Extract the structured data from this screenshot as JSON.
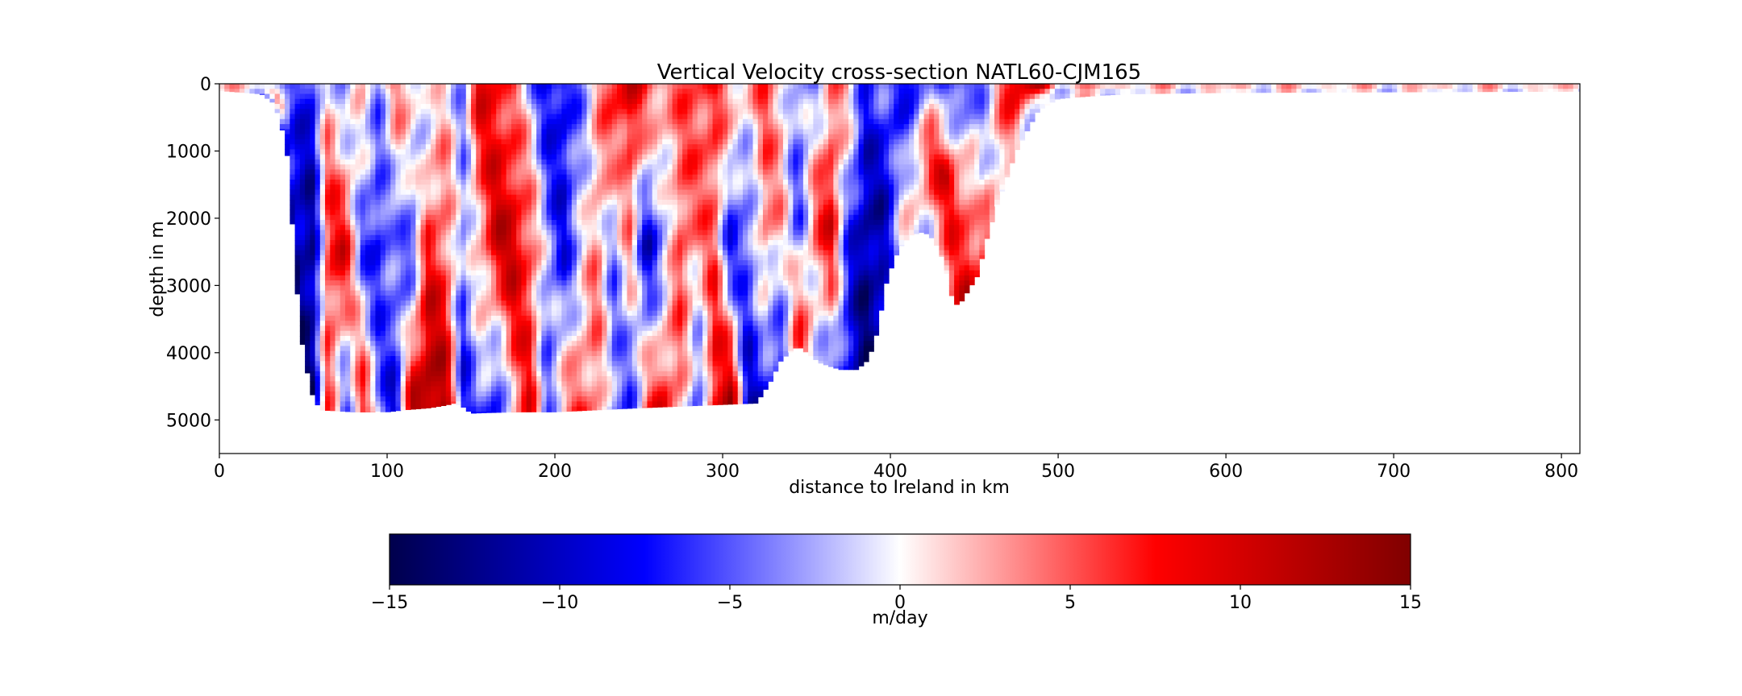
{
  "chart_data": {
    "type": "heatmap",
    "title": "Vertical Velocity cross-section NATL60-CJM165",
    "xlabel": "distance to Ireland in km",
    "ylabel": "depth in m",
    "xlim": [
      0,
      811
    ],
    "ylim": [
      5500,
      0
    ],
    "x_ticks": [
      0,
      100,
      200,
      300,
      400,
      500,
      600,
      700,
      800
    ],
    "y_ticks": [
      0,
      1000,
      2000,
      3000,
      4000,
      5000
    ],
    "colormap": "seismic",
    "colormap_stops": [
      "#00004c",
      "#0000ff",
      "#ffffff",
      "#ff0000",
      "#800000"
    ],
    "grid": false,
    "colorbar": {
      "label": "m/day",
      "range": [
        -15,
        15
      ],
      "ticks": [
        "−15",
        "−10",
        "−5",
        "0",
        "5",
        "10",
        "15"
      ],
      "tick_values": [
        -15,
        -10,
        -5,
        0,
        5,
        10,
        15
      ],
      "orientation": "horizontal",
      "placement": "bottom"
    },
    "bathymetry": {
      "x": [
        0,
        25,
        33,
        40,
        43,
        46,
        50,
        55,
        60,
        80,
        100,
        110,
        125,
        135,
        140,
        145,
        150,
        160,
        180,
        200,
        250,
        300,
        320,
        328,
        335,
        345,
        358,
        370,
        380,
        387,
        392,
        398,
        405,
        412,
        420,
        426,
        432,
        436,
        438,
        442,
        447,
        452,
        458,
        465,
        475,
        488,
        500,
        520,
        540,
        600,
        700,
        811
      ],
      "depth": [
        100,
        150,
        300,
        900,
        1900,
        3000,
        4000,
        4600,
        4850,
        4880,
        4880,
        4850,
        4820,
        4780,
        4750,
        4800,
        4900,
        4890,
        4880,
        4880,
        4820,
        4770,
        4750,
        4450,
        4100,
        3900,
        4150,
        4250,
        4250,
        4100,
        3700,
        2900,
        2450,
        2250,
        2200,
        2320,
        2650,
        3100,
        3300,
        3250,
        3050,
        2850,
        2250,
        1700,
        1000,
        400,
        220,
        180,
        150,
        130,
        120,
        110
      ]
    },
    "velocity_bands": {
      "x": [
        0,
        10,
        20,
        35,
        45,
        55,
        65,
        75,
        85,
        95,
        105,
        115,
        125,
        135,
        145,
        155,
        165,
        175,
        185,
        195,
        205,
        215,
        225,
        235,
        245,
        255,
        265,
        275,
        285,
        295,
        305,
        315,
        325,
        335,
        345,
        355,
        365,
        375,
        385,
        395,
        405,
        415,
        425,
        435,
        445,
        455,
        465,
        475,
        490,
        500
      ],
      "shallow_m_per_day": [
        5,
        3,
        2,
        -2,
        -5,
        -8,
        2,
        -4,
        1,
        -3,
        4,
        2,
        -2,
        1,
        -3,
        9,
        8,
        4,
        -2,
        -8,
        -9,
        -4,
        2,
        8,
        10,
        6,
        5,
        4,
        6,
        7,
        3,
        2,
        5,
        2,
        -3,
        -4,
        4,
        2,
        -6,
        -5,
        -7,
        -8,
        -2,
        -6,
        -8,
        -3,
        4,
        9,
        12,
        3
      ],
      "mid_m_per_day": [
        0,
        0,
        0,
        2,
        -9,
        -12,
        7,
        9,
        -5,
        -8,
        -3,
        -6,
        7,
        5,
        -4,
        2,
        10,
        11,
        6,
        -3,
        -8,
        -2,
        4,
        -4,
        3,
        -10,
        -4,
        6,
        3,
        5,
        -8,
        -6,
        4,
        2,
        -6,
        5,
        9,
        -6,
        -12,
        -10,
        -5,
        2,
        7,
        10,
        4,
        -2,
        3,
        5,
        0,
        0
      ],
      "deep_m_per_day": [
        0,
        0,
        0,
        -6,
        -14,
        -13,
        5,
        -6,
        8,
        -3,
        -10,
        11,
        14,
        12,
        -8,
        -4,
        -9,
        2,
        8,
        -5,
        3,
        6,
        4,
        -4,
        -6,
        5,
        8,
        3,
        -7,
        9,
        12,
        -10,
        -8,
        -6,
        8,
        -2,
        -3,
        -9,
        -13,
        -11,
        0,
        0,
        0,
        2,
        11,
        6,
        0,
        0,
        0,
        0
      ]
    }
  }
}
